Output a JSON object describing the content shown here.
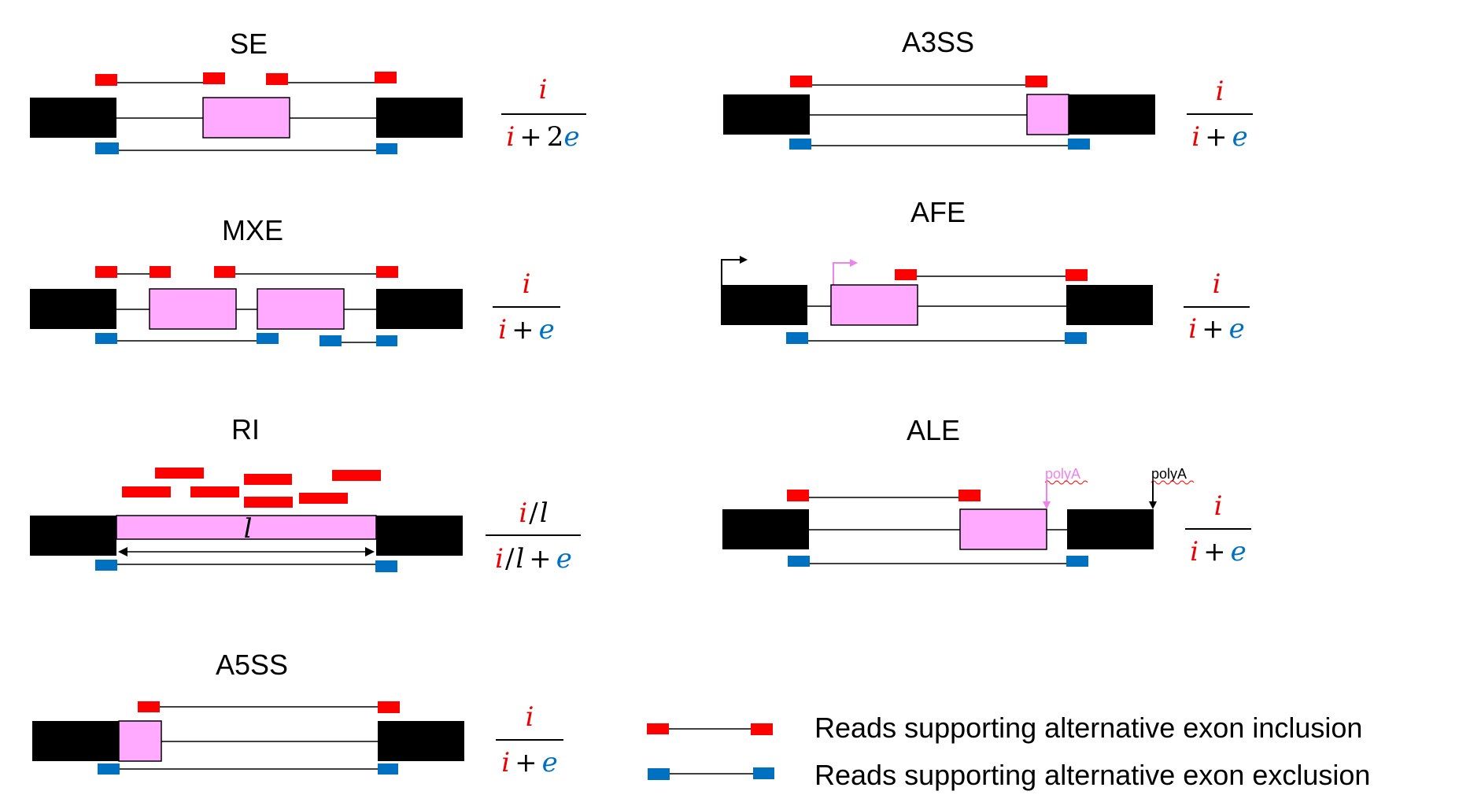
{
  "colors": {
    "inclusion_read": "#ff0000",
    "exclusion_read": "#0070c0",
    "constitutive_exon": "#000000",
    "alternative_exon": "#ffaaff",
    "alt_arrow": "#ee82ee",
    "math_i": "#ee0000",
    "math_e": "#0070c0"
  },
  "events": {
    "se": {
      "title": "SE",
      "formula": {
        "num": [
          "i"
        ],
        "den": [
          "i",
          "+",
          "2",
          "e"
        ]
      }
    },
    "mxe": {
      "title": "MXE",
      "formula": {
        "num": [
          "i"
        ],
        "den": [
          "i",
          "+",
          "e"
        ]
      }
    },
    "ri": {
      "title": "RI",
      "length_label": "l",
      "formula": {
        "num": [
          "i",
          "/",
          "l"
        ],
        "den": [
          "i",
          "/",
          "l",
          "+",
          "e"
        ]
      }
    },
    "a5ss": {
      "title": "A5SS",
      "formula": {
        "num": [
          "i"
        ],
        "den": [
          "i",
          "+",
          "e"
        ]
      }
    },
    "a3ss": {
      "title": "A3SS",
      "formula": {
        "num": [
          "i"
        ],
        "den": [
          "i",
          "+",
          "e"
        ]
      }
    },
    "afe": {
      "title": "AFE",
      "formula": {
        "num": [
          "i"
        ],
        "den": [
          "i",
          "+",
          "e"
        ]
      }
    },
    "ale": {
      "title": "ALE",
      "polya_alt_label": "polyA",
      "polya_label": "polyA",
      "formula": {
        "num": [
          "i"
        ],
        "den": [
          "i",
          "+",
          "e"
        ]
      }
    }
  },
  "legend": {
    "inclusion_text": "Reads supporting alternative exon inclusion",
    "exclusion_text": "Reads supporting alternative exon exclusion"
  }
}
